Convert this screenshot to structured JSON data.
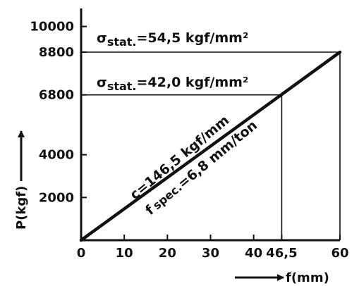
{
  "chart_data": {
    "type": "line",
    "xlabel": "f(mm)",
    "ylabel": "P(kgf)",
    "xlim": [
      0,
      60
    ],
    "ylim": [
      0,
      10000
    ],
    "x_ticks": [
      0,
      10,
      20,
      30,
      40,
      46.5,
      60
    ],
    "x_tick_labels": [
      "0",
      "10",
      "20",
      "30",
      "40",
      "46,5",
      "60"
    ],
    "y_ticks": [
      2000,
      4000,
      6800,
      8800,
      10000
    ],
    "y_tick_labels": [
      "2000",
      "4000",
      "6800",
      "8800",
      "10000"
    ],
    "grid": false,
    "series": [
      {
        "x": [
          0,
          60
        ],
        "y": [
          0,
          8800
        ]
      }
    ],
    "reference_lines": [
      {
        "x": 46.5,
        "y": 6800
      },
      {
        "x": 60,
        "y": 8800
      }
    ],
    "annotations": {
      "sigma_upper": {
        "symbol": "σ",
        "subscript": "stat.",
        "text": "=54,5 kgf/mm²"
      },
      "sigma_lower": {
        "symbol": "σ",
        "subscript": "stat.",
        "text": "=42,0 kgf/mm²"
      },
      "line_label_1": "c=146,5 kgf/mm",
      "line_label_2_prefix": "f",
      "line_label_2_sub": "spec.",
      "line_label_2_suffix": "=6,8 mm/ton"
    }
  }
}
